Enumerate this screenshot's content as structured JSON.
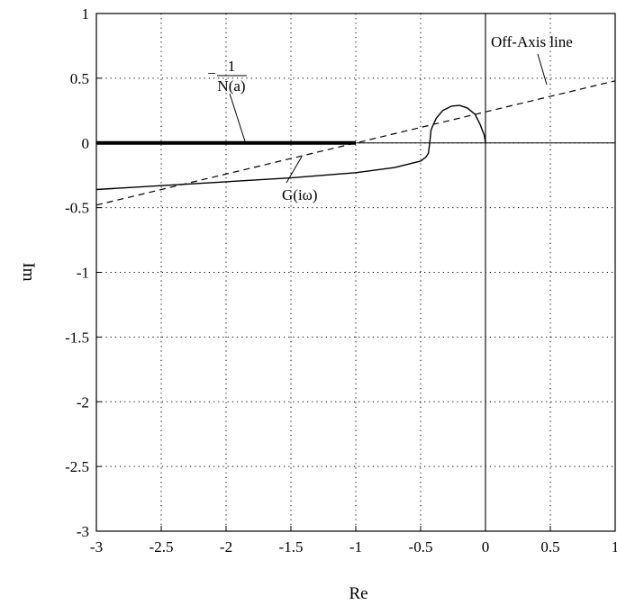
{
  "chart_data": {
    "type": "line",
    "xlabel": "Re",
    "ylabel": "Im",
    "xlim": [
      -3,
      1
    ],
    "ylim": [
      -3,
      1
    ],
    "x_ticks": [
      -3,
      -2.5,
      -2,
      -1.5,
      -1,
      -0.5,
      0,
      0.5,
      1
    ],
    "y_ticks": [
      1,
      0.5,
      0,
      -0.5,
      -1,
      -1.5,
      -2,
      -2.5,
      -3
    ],
    "x_tick_labels": [
      "-3",
      "-2.5",
      "-2",
      "-1.5",
      "-1",
      "-0.5",
      "0",
      "0.5",
      "1"
    ],
    "y_tick_labels": [
      "1",
      "0.5",
      "0",
      "-0.5",
      "-1",
      "-1.5",
      "-2",
      "-2.5",
      "-3"
    ],
    "grid": true,
    "grid_style": "dotted",
    "series": [
      {
        "id": "describing-function",
        "style": "thick-solid",
        "color": "#000000",
        "x": [
          -3,
          -1
        ],
        "y": [
          0,
          0
        ]
      },
      {
        "id": "g-curve",
        "style": "solid",
        "color": "#000000",
        "x": [
          -3,
          -2.5,
          -2.0,
          -1.5,
          -1.0,
          -0.7,
          -0.5,
          -0.46,
          -0.44,
          -0.43,
          -0.42,
          -0.38,
          -0.33,
          -0.26,
          -0.2,
          -0.14,
          -0.08,
          -0.04,
          -0.01,
          0
        ],
        "y": [
          -0.36,
          -0.33,
          -0.3,
          -0.27,
          -0.23,
          -0.19,
          -0.14,
          -0.11,
          -0.08,
          0.0,
          0.1,
          0.19,
          0.25,
          0.285,
          0.29,
          0.27,
          0.22,
          0.14,
          0.06,
          0.0
        ]
      },
      {
        "id": "off-axis-line",
        "style": "dashed",
        "color": "#000000",
        "x": [
          -3,
          1
        ],
        "y": [
          -0.48,
          0.48
        ]
      }
    ],
    "annotations": {
      "nyquist_label": "G(iω)",
      "df_numerator": "1",
      "df_denominator": "N(a)",
      "df_sign": "−",
      "offaxis_label": "Off-Axis line"
    }
  }
}
